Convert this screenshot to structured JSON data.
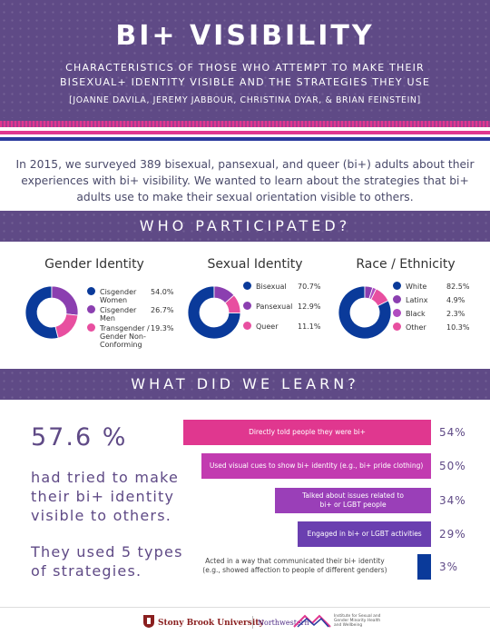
{
  "header": {
    "title": "BI+ VISIBILITY",
    "subtitle_line1": "CHARACTERISTICS OF THOSE WHO ATTEMPT TO MAKE THEIR",
    "subtitle_line2": "BISEXUAL+ IDENTITY VISIBLE AND THE STRATEGIES THEY USE",
    "authors": "[JOANNE DAVILA, JEREMY JABBOUR, CHRISTINA DYAR, & BRIAN FEINSTEIN]"
  },
  "intro": "In 2015, we surveyed 389 bisexual, pansexual, and queer (bi+) adults about their experiences with bi+ visibility. We wanted to learn about the strategies that bi+ adults use to make their sexual orientation visible to others.",
  "sections": {
    "participated": "WHO PARTICIPATED?",
    "learned": "WHAT DID WE LEARN?"
  },
  "colors": {
    "navy": "#0a3a9a",
    "purple": "#8b3fb0",
    "pink": "#e84fa0",
    "band": "#5f4a86",
    "magenta": "#e0378f"
  },
  "stats": {
    "big": "57.6 %",
    "line1": "had tried to make",
    "line2": "their bi+ identity",
    "line3": "visible to others.",
    "types1": "They used 5 types",
    "types2": "of strategies."
  },
  "footer": {
    "university": "Stony Brook University",
    "northwestern": "Northwestern",
    "institute": "Institute for Sexual and Gender Minority Health and Wellbeing"
  },
  "chart_data": [
    {
      "type": "pie",
      "title": "Gender Identity",
      "categories": [
        "Cisgender Women",
        "Cisgender Men",
        "Transgender / Gender Non-Conforming"
      ],
      "labels": [
        "54.0%",
        "26.7%",
        "19.3%"
      ],
      "values": [
        54.0,
        26.7,
        19.3
      ],
      "legend_lines": [
        [
          "Cisgender",
          "Women"
        ],
        [
          "Cisgender",
          "Men"
        ],
        [
          "Transgender /",
          "Gender Non-",
          "Conforming"
        ]
      ],
      "colors": [
        "#0a3a9a",
        "#8b3fb0",
        "#e84fa0"
      ]
    },
    {
      "type": "pie",
      "title": "Sexual Identity",
      "categories": [
        "Bisexual",
        "Pansexual",
        "Queer"
      ],
      "labels": [
        "70.7%",
        "12.9%",
        "11.1%"
      ],
      "values": [
        70.7,
        12.9,
        11.1
      ],
      "legend_lines": [
        [
          "Bisexual"
        ],
        [
          "Pansexual"
        ],
        [
          "Queer"
        ]
      ],
      "colors": [
        "#0a3a9a",
        "#8b3fb0",
        "#e84fa0"
      ]
    },
    {
      "type": "pie",
      "title": "Race / Ethnicity",
      "categories": [
        "White",
        "Latinx",
        "Black",
        "Other"
      ],
      "labels": [
        "82.5%",
        "4.9%",
        "2.3%",
        "10.3%"
      ],
      "values": [
        82.5,
        4.9,
        2.3,
        10.3
      ],
      "legend_lines": [
        [
          "White"
        ],
        [
          "Latinx"
        ],
        [
          "Black"
        ],
        [
          "Other"
        ]
      ],
      "colors": [
        "#0a3a9a",
        "#8b3fb0",
        "#b04bc0",
        "#e84fa0"
      ]
    },
    {
      "type": "bar",
      "categories": [
        "Directly told people they were bi+",
        "Used visual cues to show bi+ identity (e.g., bi+ pride clothing)",
        "Talked about issues related to bi+ or LGBT people",
        "Engaged in bi+ or LGBT activities",
        "Acted in a way that communicated their bi+ identity (e.g., showed affection to people of different genders)"
      ],
      "category_lines": [
        [
          "Directly told people they were bi+"
        ],
        [
          "Used visual cues to show bi+ identity (e.g., bi+ pride clothing)"
        ],
        [
          "Talked about issues related to",
          "bi+ or LGBT people"
        ],
        [
          "Engaged in bi+ or LGBT activities"
        ],
        [
          "Acted in a way that communicated their bi+ identity",
          "(e.g., showed affection to people of different genders)"
        ]
      ],
      "values": [
        54,
        50,
        34,
        29,
        3
      ],
      "labels": [
        "54%",
        "50%",
        "34%",
        "29%",
        "3%"
      ],
      "colors": [
        "#e0378f",
        "#c23bb0",
        "#9a3fb8",
        "#6a3fb0",
        "#0a3a9a"
      ]
    }
  ]
}
